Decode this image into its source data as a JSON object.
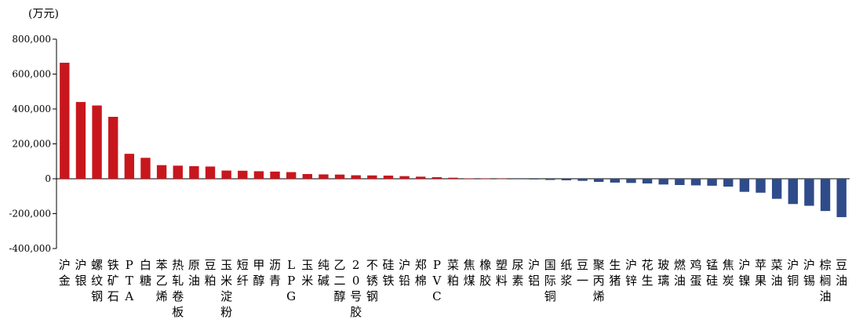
{
  "chart_data": {
    "type": "bar",
    "unit_label": "(万元)",
    "ylim": [
      -400000,
      800000
    ],
    "yticks": [
      800000,
      600000,
      400000,
      200000,
      0,
      -200000,
      -400000
    ],
    "ytick_labels": [
      "800,000",
      "600,000",
      "400,000",
      "200,000",
      "0",
      "-200,000",
      "-400,000"
    ],
    "grid": false,
    "colors": {
      "positive": "#c8161d",
      "negative": "#2f4b8a",
      "axis": "#000000"
    },
    "categories": [
      "沪金",
      "沪银",
      "螺纹钢",
      "铁矿石",
      "PTA",
      "白糖",
      "苯乙烯",
      "热轧卷板",
      "原油",
      "豆粕",
      "玉米淀粉",
      "短纤",
      "甲醇",
      "沥青",
      "LPG",
      "玉米",
      "纯碱",
      "乙二醇",
      "20号胶",
      "不锈钢",
      "硅铁",
      "沪铅",
      "郑棉",
      "PVC",
      "菜粕",
      "焦煤",
      "橡胶",
      "塑料",
      "尿素",
      "沪铝",
      "国际铜",
      "纸浆",
      "豆一",
      "聚丙烯",
      "生猪",
      "沪锌",
      "花生",
      "玻璃",
      "燃油",
      "鸡蛋",
      "锰硅",
      "焦炭",
      "沪镍",
      "苹果",
      "菜油",
      "沪铜",
      "沪锡",
      "棕榈油",
      "豆油"
    ],
    "values": [
      665000,
      440000,
      420000,
      355000,
      143000,
      120000,
      78000,
      75000,
      72000,
      70000,
      47000,
      46000,
      43000,
      41000,
      38000,
      27000,
      25000,
      24000,
      20000,
      19000,
      18000,
      15000,
      12000,
      9000,
      6000,
      2000,
      1500,
      1000,
      -3000,
      -4000,
      -7000,
      -9000,
      -12000,
      -18000,
      -22000,
      -24000,
      -27000,
      -33000,
      -36000,
      -38000,
      -40000,
      -45000,
      -75000,
      -80000,
      -115000,
      -145000,
      -155000,
      -185000,
      -220000
    ]
  }
}
